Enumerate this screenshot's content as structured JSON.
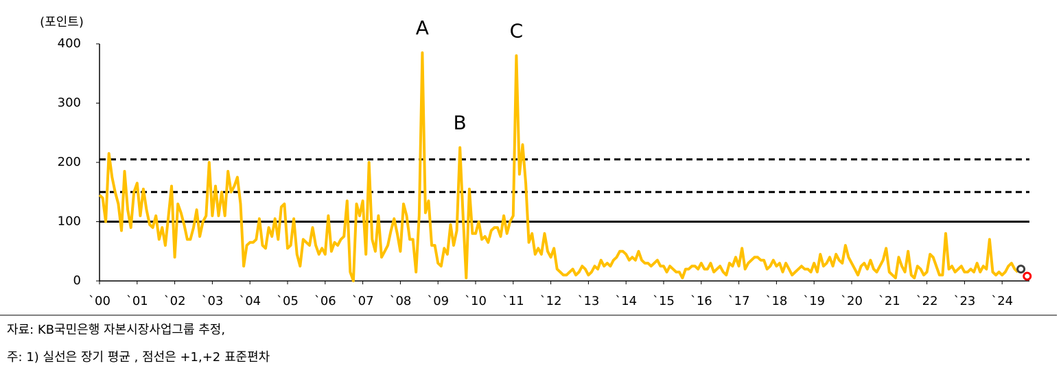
{
  "chart_data": {
    "type": "line",
    "y_label": "(포인트)",
    "categories": [
      "`00",
      null,
      null,
      null,
      null,
      null,
      null,
      null,
      null,
      null,
      null,
      null,
      "`01",
      null,
      null,
      null,
      null,
      null,
      null,
      null,
      null,
      null,
      null,
      null,
      "`02",
      null,
      null,
      null,
      null,
      null,
      null,
      null,
      null,
      null,
      null,
      null,
      "`03",
      null,
      null,
      null,
      null,
      null,
      null,
      null,
      null,
      null,
      null,
      null,
      "`04",
      null,
      null,
      null,
      null,
      null,
      null,
      null,
      null,
      null,
      null,
      null,
      "`05",
      null,
      null,
      null,
      null,
      null,
      null,
      null,
      null,
      null,
      null,
      null,
      "`06",
      null,
      null,
      null,
      null,
      null,
      null,
      null,
      null,
      null,
      null,
      null,
      "`07",
      null,
      null,
      null,
      null,
      null,
      null,
      null,
      null,
      null,
      null,
      null,
      "`08",
      null,
      null,
      null,
      null,
      null,
      null,
      null,
      null,
      null,
      null,
      null,
      "`09",
      null,
      null,
      null,
      null,
      null,
      null,
      null,
      null,
      null,
      null,
      null,
      "`10",
      null,
      null,
      null,
      null,
      null,
      null,
      null,
      null,
      null,
      null,
      null,
      "`11",
      null,
      null,
      null,
      null,
      null,
      null,
      null,
      null,
      null,
      null,
      null,
      "`12",
      null,
      null,
      null,
      null,
      null,
      null,
      null,
      null,
      null,
      null,
      null,
      "`13",
      null,
      null,
      null,
      null,
      null,
      null,
      null,
      null,
      null,
      null,
      null,
      "`14",
      null,
      null,
      null,
      null,
      null,
      null,
      null,
      null,
      null,
      null,
      null,
      "`15",
      null,
      null,
      null,
      null,
      null,
      null,
      null,
      null,
      null,
      null,
      null,
      "`16",
      null,
      null,
      null,
      null,
      null,
      null,
      null,
      null,
      null,
      null,
      null,
      "`17",
      null,
      null,
      null,
      null,
      null,
      null,
      null,
      null,
      null,
      null,
      null,
      "`18",
      null,
      null,
      null,
      null,
      null,
      null,
      null,
      null,
      null,
      null,
      null,
      "`19",
      null,
      null,
      null,
      null,
      null,
      null,
      null,
      null,
      null,
      null,
      null,
      "`20",
      null,
      null,
      null,
      null,
      null,
      null,
      null,
      null,
      null,
      null,
      null,
      "`21",
      null,
      null,
      null,
      null,
      null,
      null,
      null,
      null,
      null,
      null,
      null,
      "`22",
      null,
      null,
      null,
      null,
      null,
      null,
      null,
      null,
      null,
      null,
      null,
      "`23",
      null,
      null,
      null,
      null,
      null,
      null,
      null,
      null,
      null,
      null,
      null,
      "`24",
      null,
      null,
      null,
      null,
      null,
      null,
      null,
      null
    ],
    "series": [
      {
        "color": "#FFC000",
        "values": [
          145,
          140,
          100,
          215,
          175,
          150,
          130,
          85,
          185,
          120,
          90,
          150,
          165,
          110,
          155,
          120,
          95,
          90,
          110,
          70,
          90,
          60,
          110,
          160,
          40,
          130,
          115,
          95,
          70,
          70,
          90,
          120,
          75,
          100,
          110,
          200,
          110,
          160,
          110,
          150,
          110,
          185,
          150,
          160,
          175,
          130,
          25,
          60,
          65,
          65,
          70,
          105,
          60,
          55,
          90,
          75,
          105,
          70,
          125,
          130,
          55,
          60,
          105,
          45,
          25,
          70,
          65,
          60,
          90,
          60,
          45,
          55,
          45,
          110,
          50,
          65,
          60,
          70,
          75,
          135,
          15,
          0,
          130,
          110,
          135,
          45,
          200,
          70,
          50,
          110,
          40,
          50,
          60,
          85,
          105,
          80,
          50,
          130,
          110,
          70,
          70,
          15,
          110,
          385,
          115,
          135,
          60,
          60,
          30,
          25,
          55,
          45,
          95,
          60,
          85,
          225,
          110,
          5,
          155,
          80,
          80,
          100,
          70,
          75,
          65,
          85,
          90,
          90,
          75,
          110,
          80,
          100,
          110,
          380,
          180,
          230,
          165,
          65,
          80,
          45,
          55,
          45,
          80,
          50,
          40,
          55,
          20,
          15,
          10,
          10,
          15,
          20,
          10,
          15,
          25,
          20,
          10,
          15,
          25,
          20,
          35,
          25,
          30,
          25,
          35,
          40,
          50,
          50,
          45,
          35,
          40,
          35,
          50,
          35,
          30,
          30,
          25,
          30,
          35,
          25,
          25,
          15,
          25,
          20,
          15,
          15,
          5,
          20,
          20,
          25,
          25,
          20,
          30,
          20,
          20,
          30,
          15,
          20,
          25,
          15,
          10,
          30,
          25,
          40,
          25,
          55,
          20,
          30,
          35,
          40,
          40,
          35,
          35,
          20,
          25,
          35,
          25,
          30,
          15,
          30,
          20,
          10,
          15,
          20,
          25,
          20,
          20,
          15,
          30,
          15,
          45,
          25,
          30,
          40,
          25,
          45,
          35,
          30,
          60,
          40,
          30,
          20,
          10,
          25,
          30,
          20,
          35,
          20,
          15,
          25,
          35,
          55,
          15,
          10,
          5,
          40,
          25,
          15,
          50,
          10,
          5,
          25,
          20,
          10,
          15,
          45,
          40,
          25,
          10,
          10,
          80,
          20,
          25,
          15,
          20,
          25,
          15,
          15,
          20,
          15,
          30,
          15,
          25,
          20,
          70,
          15,
          10,
          15,
          10,
          15,
          25,
          30,
          20,
          15,
          null,
          null,
          null
        ]
      }
    ],
    "points": [
      {
        "index": 294,
        "value": 20,
        "color": "#404040"
      },
      {
        "index": 296,
        "value": 8,
        "color": "#FF0000"
      }
    ],
    "hlines": [
      {
        "value": 100,
        "style": "solid"
      },
      {
        "value": 150,
        "style": "dashed"
      },
      {
        "value": 205,
        "style": "dashed"
      }
    ],
    "annotations": [
      {
        "text": "A",
        "index": 103
      },
      {
        "text": "B",
        "index": 115
      },
      {
        "text": "C",
        "index": 133
      }
    ],
    "ylim": [
      0,
      400
    ],
    "yticks": [
      0,
      100,
      200,
      300,
      400
    ],
    "notes": [
      "자료: KB국민은행 자본시장사업그룹 추정,",
      "주: 1) 실선은 장기 평균 , 점선은 +1,+2 표준편차"
    ]
  }
}
